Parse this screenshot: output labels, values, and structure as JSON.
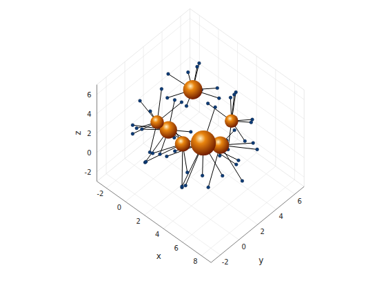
{
  "chart_data": {
    "type": "scatter3d",
    "xlabel": "x",
    "ylabel": "y",
    "zlabel": "z",
    "xlim": [
      -3,
      9
    ],
    "xticks": [
      -2,
      0,
      2,
      4,
      6,
      8
    ],
    "ylim": [
      -3,
      7
    ],
    "yticks": [
      -2,
      0,
      2,
      4,
      6
    ],
    "zlim": [
      -3,
      7
    ],
    "zticks": [
      -2,
      0,
      2,
      4,
      6
    ],
    "grid": true,
    "series": [
      {
        "type": "sphere",
        "color": "#e8840e",
        "values": [
          {
            "x": 1.4,
            "y": 2.8,
            "z": 5,
            "radius": 1.0
          },
          {
            "x": 0.8,
            "y": 0.8,
            "z": 2,
            "radius": 0.9
          },
          {
            "x": 0.3,
            "y": 0.1,
            "z": 3,
            "radius": 0.7
          },
          {
            "x": 4.4,
            "y": 3.9,
            "z": 3,
            "radius": 0.7
          },
          {
            "x": 1.9,
            "y": 1.2,
            "z": 1,
            "radius": 0.8
          },
          {
            "x": 4.1,
            "y": 3.0,
            "z": 1,
            "radius": 0.9
          },
          {
            "x": 3.0,
            "y": 2.3,
            "z": 1,
            "radius": 1.3
          }
        ]
      },
      {
        "type": "scatter",
        "color": "#0c3c78",
        "marker": "circle",
        "values": [
          {
            "x": 1.2,
            "y": 2.5,
            "z": 6.9,
            "sphere": 0
          },
          {
            "x": 3.2,
            "y": 3.6,
            "z": 5.8,
            "sphere": 0
          },
          {
            "x": -0.4,
            "y": 2.0,
            "z": 6.0,
            "sphere": 0
          },
          {
            "x": 2.5,
            "y": 1.0,
            "z": 5.5,
            "sphere": 0
          },
          {
            "x": 0.2,
            "y": 4.5,
            "z": 5.2,
            "sphere": 0
          },
          {
            "x": 2.8,
            "y": 4.2,
            "z": 4.0,
            "sphere": 0
          },
          {
            "x": 0.0,
            "y": 1.5,
            "z": 4.2,
            "sphere": 0
          },
          {
            "x": 1.0,
            "y": 3.9,
            "z": 6.6,
            "sphere": 0
          },
          {
            "x": 2.9,
            "y": 2.2,
            "z": 6.5,
            "sphere": 0
          },
          {
            "x": -1.4,
            "y": 0.2,
            "z": 1.0,
            "sphere": 1
          },
          {
            "x": 0.6,
            "y": -1.5,
            "z": 0.3,
            "sphere": 1
          },
          {
            "x": 2.6,
            "y": 2.0,
            "z": 0.8,
            "sphere": 1
          },
          {
            "x": 1.9,
            "y": -0.6,
            "z": 3.6,
            "sphere": 1
          },
          {
            "x": -0.3,
            "y": 2.6,
            "z": 2.9,
            "sphere": 1
          },
          {
            "x": 0.4,
            "y": 0.3,
            "z": -0.4,
            "sphere": 1
          },
          {
            "x": 2.9,
            "y": 0.5,
            "z": 2.3,
            "sphere": 1
          },
          {
            "x": -1.0,
            "y": -1.2,
            "z": 2.8,
            "sphere": 1
          },
          {
            "x": 1.2,
            "y": 2.8,
            "z": 0.5,
            "sphere": 1
          },
          {
            "x": -1.8,
            "y": 0.4,
            "z": 3.5,
            "sphere": 2
          },
          {
            "x": 0.1,
            "y": -1.9,
            "z": 3.8,
            "sphere": 2
          },
          {
            "x": 1.5,
            "y": 1.5,
            "z": 4.8,
            "sphere": 2
          },
          {
            "x": -1.2,
            "y": -1.0,
            "z": 1.6,
            "sphere": 2
          },
          {
            "x": 0.9,
            "y": -1.3,
            "z": 1.4,
            "sphere": 2
          },
          {
            "x": -0.8,
            "y": 1.7,
            "z": 4.4,
            "sphere": 2
          },
          {
            "x": 2.0,
            "y": 0.2,
            "z": 2.5,
            "sphere": 2
          },
          {
            "x": -1.5,
            "y": 1.2,
            "z": 2.0,
            "sphere": 2
          },
          {
            "x": 4.2,
            "y": 4.0,
            "z": 5.2,
            "sphere": 3
          },
          {
            "x": 6.0,
            "y": 4.5,
            "z": 3.8,
            "sphere": 3
          },
          {
            "x": 3.0,
            "y": 5.8,
            "z": 3.5,
            "sphere": 3
          },
          {
            "x": 5.5,
            "y": 2.4,
            "z": 2.0,
            "sphere": 3
          },
          {
            "x": 4.8,
            "y": 5.6,
            "z": 1.8,
            "sphere": 3
          },
          {
            "x": 2.8,
            "y": 3.0,
            "z": 4.4,
            "sphere": 3
          },
          {
            "x": 6.2,
            "y": 3.5,
            "z": 2.5,
            "sphere": 3
          },
          {
            "x": 4.0,
            "y": 4.6,
            "z": 4.9,
            "sphere": 3
          },
          {
            "x": 0.0,
            "y": -0.8,
            "z": -0.6,
            "sphere": 4
          },
          {
            "x": 1.4,
            "y": -1.5,
            "z": 1.8,
            "sphere": 4
          },
          {
            "x": 3.4,
            "y": -0.4,
            "z": -1.2,
            "sphere": 4
          },
          {
            "x": -0.2,
            "y": 2.4,
            "z": 0.2,
            "sphere": 4
          },
          {
            "x": 2.2,
            "y": 1.4,
            "z": -1.9,
            "sphere": 4
          },
          {
            "x": 6.8,
            "y": 2.6,
            "z": -0.5,
            "sphere": 5
          },
          {
            "x": 5.4,
            "y": 5.2,
            "z": 0.4,
            "sphere": 5
          },
          {
            "x": 7.0,
            "y": 4.0,
            "z": 1.8,
            "sphere": 5
          },
          {
            "x": 4.6,
            "y": 1.2,
            "z": -1.6,
            "sphere": 5
          },
          {
            "x": 3.2,
            "y": 4.6,
            "z": -0.4,
            "sphere": 5
          },
          {
            "x": 6.0,
            "y": 1.0,
            "z": 2.8,
            "sphere": 5
          },
          {
            "x": 5.2,
            "y": 3.4,
            "z": 3.0,
            "sphere": 5
          },
          {
            "x": 5.8,
            "y": 1.5,
            "z": 0.2,
            "sphere": 6
          },
          {
            "x": 3.6,
            "y": -0.6,
            "z": -0.8,
            "sphere": 6
          },
          {
            "x": 0.5,
            "y": 1.8,
            "z": -1.2,
            "sphere": 6
          },
          {
            "x": 3.2,
            "y": 2.0,
            "z": -2.0,
            "sphere": 6
          },
          {
            "x": 5.0,
            "y": 3.8,
            "z": -1.0,
            "sphere": 6
          },
          {
            "x": 1.6,
            "y": -0.2,
            "z": 0.6,
            "sphere": 6
          },
          {
            "x": 4.4,
            "y": 0.4,
            "z": 2.6,
            "sphere": 6
          },
          {
            "x": 2.0,
            "y": 4.6,
            "z": 2.2,
            "sphere": 6
          },
          {
            "x": 6.5,
            "y": 2.5,
            "z": 1.5,
            "sphere": 6
          },
          {
            "x": 2.6,
            "y": 0.8,
            "z": -2.5,
            "sphere": 6
          }
        ]
      }
    ]
  }
}
